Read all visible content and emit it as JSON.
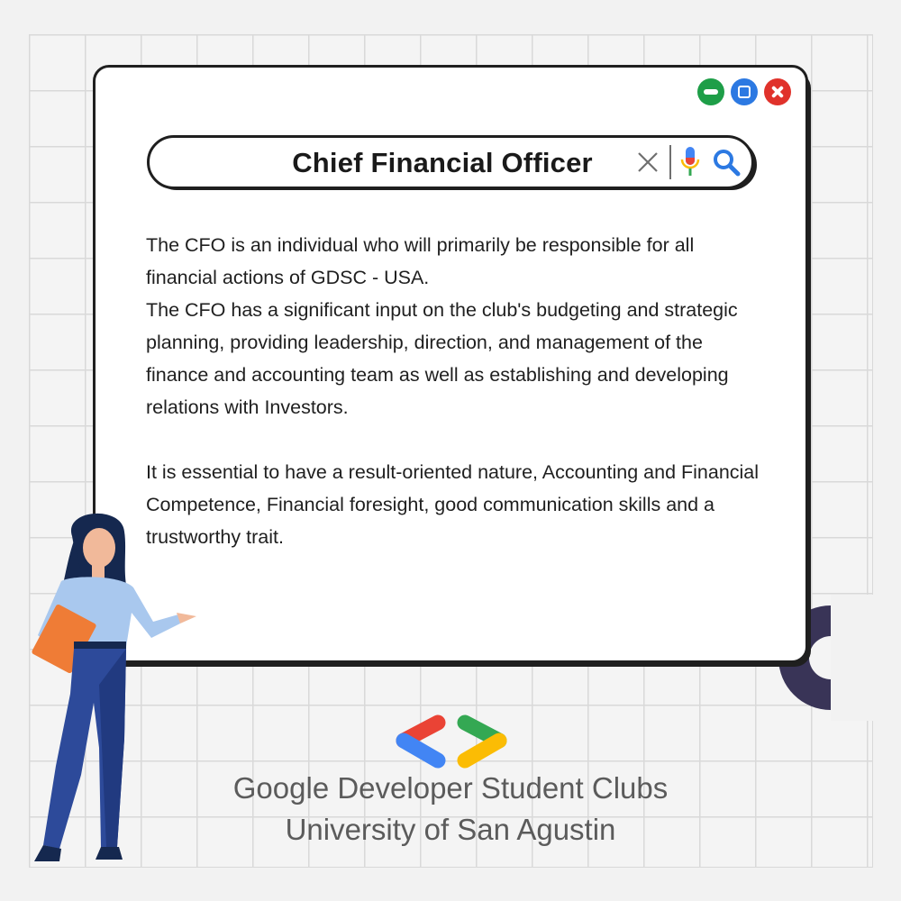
{
  "search": {
    "query": "Chief Financial Officer"
  },
  "window": {
    "controls": {
      "minimize_icon": "minimize-icon",
      "maximize_icon": "maximize-icon",
      "close_icon": "close-icon"
    }
  },
  "body": {
    "paragraph1_line1": "The CFO is an individual who will primarily be responsible for all financial actions of  GDSC - USA.",
    "paragraph1_line2": "The CFO has a significant input on the club's budgeting and strategic planning, providing leadership, direction, and management of the finance and accounting team as well as establishing and developing relations with Investors.",
    "paragraph2": "It is essential to have a result-oriented nature, Accounting and Financial Competence, Financial foresight, good communication skills and a trustworthy trait."
  },
  "footer": {
    "org_line1": "Google Developer Student Clubs",
    "org_line2": "University of San Agustin"
  },
  "colors": {
    "google_blue": "#4285F4",
    "google_red": "#EA4335",
    "google_green": "#34A853",
    "google_yellow": "#FBBC04",
    "window_border": "#1f1f1f",
    "accent_ring": "#393457"
  }
}
